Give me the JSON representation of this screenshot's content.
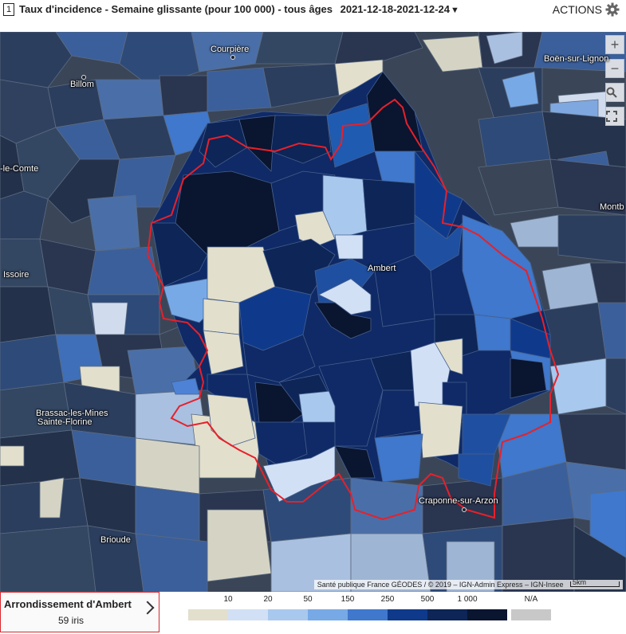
{
  "header": {
    "badge": "1",
    "title": "Taux d'incidence - Semaine glissante (pour 100 000) - tous âges",
    "period": "2021-12-18-2021-12-24",
    "caret": "▼",
    "actions_label": "ACTIONS",
    "actions_icon": "gear-icon"
  },
  "map": {
    "zoom_in": "+",
    "zoom_out": "−",
    "search_icon": "magnifier-icon",
    "fullscreen_icon": "fullscreen-icon",
    "attribution": "Santé publique France GÉODES / © 2019 – IGN-Admin Express – IGN-Insee",
    "scale_label": "5km",
    "highlight_color": "#e8202a",
    "places": [
      {
        "name": "Courpière"
      },
      {
        "name": "Boën-sur-Lignon"
      },
      {
        "name": "Billom"
      },
      {
        "name": "-le-Comte"
      },
      {
        "name": "Montb"
      },
      {
        "name": "Ambert"
      },
      {
        "name": "Issoire"
      },
      {
        "name": "Brassac-les-Mines"
      },
      {
        "name": "Sainte-Florine"
      },
      {
        "name": "Craponne-sur-Arzon"
      },
      {
        "name": "Brioude"
      }
    ]
  },
  "selection": {
    "name": "Arrondissement d'Ambert",
    "count": "59 iris"
  },
  "legend": {
    "thresholds": [
      "10",
      "20",
      "50",
      "150",
      "250",
      "500",
      "1 000"
    ],
    "colors": [
      "#e2dfcc",
      "#d1e0f5",
      "#a9c8ee",
      "#77a9e6",
      "#3f78cc",
      "#0f3a8c",
      "#0d2557",
      "#0a1530"
    ],
    "na_label": "N/A",
    "na_color": "#c8c8c8"
  }
}
